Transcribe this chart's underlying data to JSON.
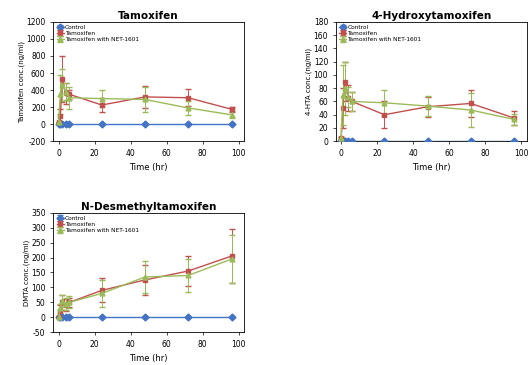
{
  "time": [
    0,
    1,
    2,
    4,
    6,
    24,
    48,
    72,
    96
  ],
  "tamoxifen": {
    "title": "Tamoxifen",
    "ylabel": "Tamoxifen conc.(ng/ml)",
    "ylim": [
      -200,
      1200
    ],
    "yticks": [
      -200,
      0,
      200,
      400,
      600,
      800,
      1000,
      1200
    ],
    "control_mean": [
      0,
      0,
      0,
      0,
      0,
      0,
      0,
      0,
      0
    ],
    "control_err": [
      0,
      0,
      0,
      0,
      0,
      0,
      0,
      0,
      0
    ],
    "tamox_mean": [
      25,
      100,
      530,
      360,
      350,
      225,
      320,
      310,
      175
    ],
    "tamox_err": [
      5,
      80,
      270,
      120,
      50,
      80,
      130,
      100,
      30
    ],
    "net_mean": [
      25,
      350,
      460,
      380,
      310,
      300,
      290,
      190,
      110
    ],
    "net_err": [
      5,
      230,
      190,
      100,
      130,
      100,
      150,
      80,
      40
    ]
  },
  "hydroxytamoxifen": {
    "title": "4-Hydroxytamoxifen",
    "ylabel": "4-HTA conc.(ng/ml)",
    "ylim": [
      0,
      180
    ],
    "yticks": [
      0,
      20,
      40,
      60,
      80,
      100,
      120,
      140,
      160,
      180
    ],
    "control_mean": [
      0,
      0,
      0,
      0,
      0,
      0,
      0,
      0,
      0
    ],
    "control_err": [
      0,
      0,
      0,
      0,
      0,
      0,
      0,
      0,
      0
    ],
    "tamox_mean": [
      5,
      50,
      90,
      65,
      60,
      40,
      52,
      57,
      35
    ],
    "tamox_err": [
      2,
      30,
      30,
      20,
      15,
      20,
      15,
      20,
      10
    ],
    "net_mean": [
      5,
      70,
      80,
      67,
      60,
      58,
      53,
      47,
      33
    ],
    "net_err": [
      2,
      45,
      40,
      15,
      15,
      20,
      15,
      25,
      8
    ]
  },
  "ndesmethyl": {
    "title": "N-Desmethyltamoxifen",
    "ylabel": "DMTA conc.(ng/ml)",
    "ylim": [
      -50,
      350
    ],
    "yticks": [
      -50,
      0,
      50,
      100,
      150,
      200,
      250,
      300,
      350
    ],
    "control_mean": [
      0,
      0,
      0,
      0,
      0,
      0,
      0,
      0,
      0
    ],
    "control_err": [
      0,
      0,
      0,
      0,
      0,
      0,
      0,
      0,
      0
    ],
    "tamox_mean": [
      0,
      20,
      50,
      40,
      50,
      90,
      125,
      155,
      205
    ],
    "tamox_err": [
      0,
      20,
      25,
      20,
      15,
      40,
      50,
      50,
      90
    ],
    "net_mean": [
      0,
      30,
      55,
      45,
      50,
      80,
      135,
      140,
      195
    ],
    "net_err": [
      0,
      15,
      20,
      20,
      20,
      45,
      55,
      55,
      80
    ]
  },
  "colors": {
    "control": "#4472C4",
    "tamoxifen": "#C0504D",
    "net": "#9BBB59"
  },
  "legend_labels": [
    "Control",
    "Tamoxifen",
    "Tamoxifen with NET-1601"
  ],
  "xlabel": "Time (hr)",
  "xticks": [
    0,
    20,
    40,
    60,
    80,
    100
  ],
  "marker_control": "D",
  "marker_tamox": "s",
  "marker_net": "^",
  "markersize": 3.5,
  "linewidth": 1.0,
  "capsize": 2,
  "elinewidth": 0.7,
  "bg_color": "#FFFFFF"
}
